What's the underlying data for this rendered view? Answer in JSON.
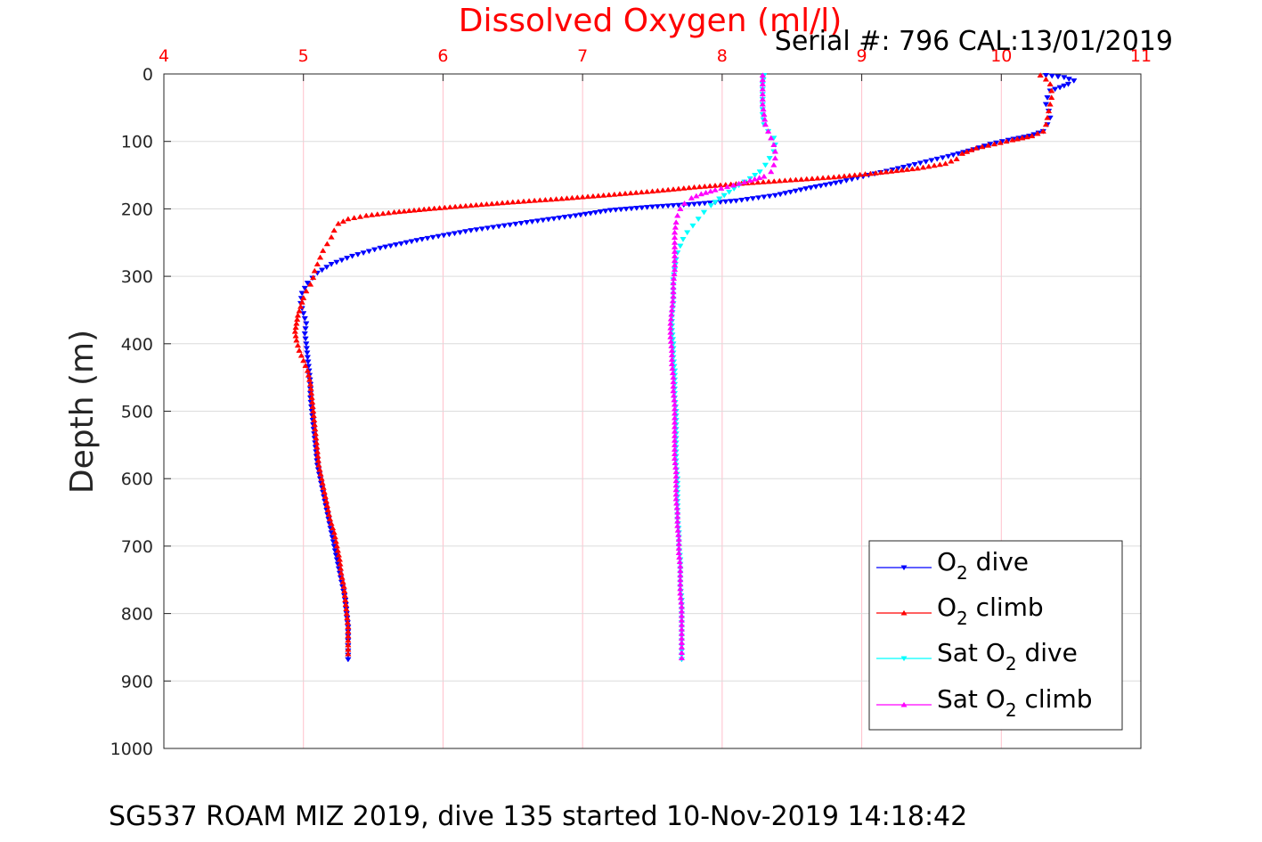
{
  "chart_data": {
    "type": "scatter",
    "title": "Dissolved Oxygen (ml/l)",
    "subtitle": "Serial #: 796  CAL:13/01/2019",
    "footer": "SG537 ROAM MIZ 2019, dive 135 started 10-Nov-2019 14:18:42",
    "xlabel": "",
    "ylabel": "Depth (m)",
    "xlim": [
      4,
      11
    ],
    "ylim": [
      0,
      1000
    ],
    "y_reversed": true,
    "x_axis_position": "top",
    "x_ticks": [
      "4",
      "5",
      "6",
      "7",
      "8",
      "9",
      "10",
      "11"
    ],
    "y_ticks": [
      "0",
      "100",
      "200",
      "300",
      "400",
      "500",
      "600",
      "700",
      "800",
      "900",
      "1000"
    ],
    "grid": true,
    "grid_color": "#ffc0cb",
    "title_color": "#ff0000",
    "legend_position": "bottom-right",
    "series": [
      {
        "name": "O2 dive",
        "label_main": "O",
        "label_sub": "2",
        "label_rest": " dive",
        "color": "#0000ff",
        "marker": "triangle-down",
        "points": [
          [
            10.32,
            2
          ],
          [
            10.45,
            5
          ],
          [
            10.52,
            10
          ],
          [
            10.48,
            15
          ],
          [
            10.42,
            20
          ],
          [
            10.35,
            25
          ],
          [
            10.33,
            35
          ],
          [
            10.32,
            45
          ],
          [
            10.34,
            55
          ],
          [
            10.35,
            65
          ],
          [
            10.33,
            75
          ],
          [
            10.3,
            85
          ],
          [
            10.2,
            92
          ],
          [
            10.05,
            98
          ],
          [
            9.92,
            104
          ],
          [
            9.8,
            112
          ],
          [
            9.62,
            122
          ],
          [
            9.42,
            132
          ],
          [
            9.22,
            142
          ],
          [
            9.05,
            150
          ],
          [
            8.85,
            160
          ],
          [
            8.6,
            170
          ],
          [
            8.38,
            180
          ],
          [
            8.1,
            188
          ],
          [
            7.8,
            193
          ],
          [
            7.5,
            197
          ],
          [
            7.2,
            202
          ],
          [
            6.95,
            210
          ],
          [
            6.6,
            220
          ],
          [
            6.2,
            232
          ],
          [
            5.85,
            245
          ],
          [
            5.55,
            258
          ],
          [
            5.35,
            270
          ],
          [
            5.2,
            282
          ],
          [
            5.1,
            295
          ],
          [
            5.03,
            310
          ],
          [
            4.99,
            325
          ],
          [
            4.98,
            340
          ],
          [
            5.0,
            355
          ],
          [
            5.02,
            370
          ],
          [
            5.01,
            385
          ],
          [
            5.02,
            400
          ],
          [
            5.03,
            420
          ],
          [
            5.04,
            440
          ],
          [
            5.05,
            460
          ],
          [
            5.05,
            480
          ],
          [
            5.06,
            500
          ],
          [
            5.07,
            520
          ],
          [
            5.08,
            540
          ],
          [
            5.09,
            560
          ],
          [
            5.1,
            580
          ],
          [
            5.12,
            600
          ],
          [
            5.14,
            620
          ],
          [
            5.16,
            640
          ],
          [
            5.18,
            660
          ],
          [
            5.2,
            680
          ],
          [
            5.22,
            700
          ],
          [
            5.24,
            720
          ],
          [
            5.26,
            740
          ],
          [
            5.28,
            760
          ],
          [
            5.3,
            780
          ],
          [
            5.31,
            800
          ],
          [
            5.32,
            820
          ],
          [
            5.32,
            840
          ],
          [
            5.32,
            855
          ],
          [
            5.32,
            868
          ]
        ]
      },
      {
        "name": "O2 climb",
        "label_main": "O",
        "label_sub": "2",
        "label_rest": " climb",
        "color": "#ff0000",
        "marker": "triangle-up",
        "points": [
          [
            10.28,
            2
          ],
          [
            10.32,
            8
          ],
          [
            10.35,
            15
          ],
          [
            10.36,
            25
          ],
          [
            10.36,
            35
          ],
          [
            10.35,
            45
          ],
          [
            10.34,
            55
          ],
          [
            10.33,
            65
          ],
          [
            10.32,
            75
          ],
          [
            10.3,
            85
          ],
          [
            10.22,
            92
          ],
          [
            10.08,
            98
          ],
          [
            9.95,
            104
          ],
          [
            9.82,
            110
          ],
          [
            9.72,
            118
          ],
          [
            9.68,
            126
          ],
          [
            9.6,
            133
          ],
          [
            9.4,
            140
          ],
          [
            9.1,
            147
          ],
          [
            8.8,
            153
          ],
          [
            8.45,
            158
          ],
          [
            8.1,
            163
          ],
          [
            7.8,
            168
          ],
          [
            7.5,
            174
          ],
          [
            7.15,
            180
          ],
          [
            6.85,
            185
          ],
          [
            6.5,
            190
          ],
          [
            6.2,
            195
          ],
          [
            5.9,
            200
          ],
          [
            5.65,
            205
          ],
          [
            5.45,
            210
          ],
          [
            5.32,
            215
          ],
          [
            5.25,
            222
          ],
          [
            5.22,
            232
          ],
          [
            5.2,
            242
          ],
          [
            5.17,
            252
          ],
          [
            5.14,
            262
          ],
          [
            5.12,
            272
          ],
          [
            5.1,
            282
          ],
          [
            5.08,
            292
          ],
          [
            5.07,
            302
          ],
          [
            5.05,
            312
          ],
          [
            5.02,
            322
          ],
          [
            5.0,
            332
          ],
          [
            4.98,
            345
          ],
          [
            4.96,
            358
          ],
          [
            4.95,
            370
          ],
          [
            4.94,
            382
          ],
          [
            4.95,
            395
          ],
          [
            4.97,
            410
          ],
          [
            5.0,
            425
          ],
          [
            5.03,
            440
          ],
          [
            5.05,
            460
          ],
          [
            5.06,
            480
          ],
          [
            5.07,
            500
          ],
          [
            5.08,
            520
          ],
          [
            5.09,
            540
          ],
          [
            5.1,
            560
          ],
          [
            5.11,
            580
          ],
          [
            5.13,
            600
          ],
          [
            5.15,
            620
          ],
          [
            5.17,
            640
          ],
          [
            5.19,
            660
          ],
          [
            5.22,
            680
          ],
          [
            5.24,
            700
          ],
          [
            5.26,
            720
          ],
          [
            5.27,
            740
          ],
          [
            5.29,
            760
          ],
          [
            5.3,
            780
          ],
          [
            5.31,
            800
          ],
          [
            5.32,
            820
          ],
          [
            5.32,
            840
          ],
          [
            5.32,
            860
          ]
        ]
      },
      {
        "name": "Sat O2 dive",
        "label_main": "Sat O",
        "label_sub": "2",
        "label_rest": " dive",
        "color": "#00ffff",
        "marker": "triangle-down",
        "points": [
          [
            8.3,
            2
          ],
          [
            8.29,
            15
          ],
          [
            8.29,
            30
          ],
          [
            8.29,
            45
          ],
          [
            8.29,
            60
          ],
          [
            8.3,
            75
          ],
          [
            8.33,
            85
          ],
          [
            8.37,
            95
          ],
          [
            8.38,
            105
          ],
          [
            8.37,
            115
          ],
          [
            8.34,
            125
          ],
          [
            8.31,
            135
          ],
          [
            8.27,
            145
          ],
          [
            8.2,
            155
          ],
          [
            8.12,
            165
          ],
          [
            8.05,
            175
          ],
          [
            7.98,
            185
          ],
          [
            7.92,
            195
          ],
          [
            7.87,
            205
          ],
          [
            7.83,
            215
          ],
          [
            7.79,
            225
          ],
          [
            7.75,
            235
          ],
          [
            7.72,
            245
          ],
          [
            7.7,
            255
          ],
          [
            7.68,
            265
          ],
          [
            7.67,
            275
          ],
          [
            7.66,
            290
          ],
          [
            7.65,
            305
          ],
          [
            7.65,
            320
          ],
          [
            7.65,
            340
          ],
          [
            7.64,
            360
          ],
          [
            7.64,
            380
          ],
          [
            7.65,
            400
          ],
          [
            7.65,
            420
          ],
          [
            7.66,
            440
          ],
          [
            7.66,
            460
          ],
          [
            7.66,
            480
          ],
          [
            7.67,
            500
          ],
          [
            7.67,
            520
          ],
          [
            7.67,
            540
          ],
          [
            7.67,
            560
          ],
          [
            7.67,
            580
          ],
          [
            7.68,
            600
          ],
          [
            7.68,
            620
          ],
          [
            7.68,
            640
          ],
          [
            7.68,
            660
          ],
          [
            7.69,
            680
          ],
          [
            7.69,
            700
          ],
          [
            7.7,
            720
          ],
          [
            7.7,
            740
          ],
          [
            7.7,
            760
          ],
          [
            7.71,
            780
          ],
          [
            7.71,
            800
          ],
          [
            7.71,
            820
          ],
          [
            7.71,
            840
          ],
          [
            7.71,
            855
          ],
          [
            7.71,
            868
          ]
        ]
      },
      {
        "name": "Sat O2 climb",
        "label_main": "Sat O",
        "label_sub": "2",
        "label_rest": " climb",
        "color": "#ff00ff",
        "marker": "triangle-up",
        "points": [
          [
            8.29,
            2
          ],
          [
            8.29,
            15
          ],
          [
            8.29,
            30
          ],
          [
            8.29,
            45
          ],
          [
            8.3,
            60
          ],
          [
            8.31,
            75
          ],
          [
            8.33,
            85
          ],
          [
            8.35,
            95
          ],
          [
            8.37,
            105
          ],
          [
            8.38,
            115
          ],
          [
            8.38,
            125
          ],
          [
            8.37,
            135
          ],
          [
            8.35,
            145
          ],
          [
            8.3,
            152
          ],
          [
            8.2,
            158
          ],
          [
            8.08,
            165
          ],
          [
            7.95,
            172
          ],
          [
            7.85,
            178
          ],
          [
            7.78,
            184
          ],
          [
            7.73,
            192
          ],
          [
            7.7,
            200
          ],
          [
            7.68,
            210
          ],
          [
            7.67,
            220
          ],
          [
            7.66,
            235
          ],
          [
            7.66,
            250
          ],
          [
            7.66,
            270
          ],
          [
            7.66,
            290
          ],
          [
            7.65,
            310
          ],
          [
            7.65,
            330
          ],
          [
            7.64,
            350
          ],
          [
            7.63,
            370
          ],
          [
            7.63,
            390
          ],
          [
            7.64,
            410
          ],
          [
            7.64,
            430
          ],
          [
            7.65,
            450
          ],
          [
            7.65,
            470
          ],
          [
            7.66,
            490
          ],
          [
            7.66,
            510
          ],
          [
            7.66,
            530
          ],
          [
            7.66,
            550
          ],
          [
            7.66,
            570
          ],
          [
            7.67,
            590
          ],
          [
            7.67,
            610
          ],
          [
            7.67,
            630
          ],
          [
            7.68,
            650
          ],
          [
            7.68,
            670
          ],
          [
            7.69,
            690
          ],
          [
            7.69,
            710
          ],
          [
            7.7,
            730
          ],
          [
            7.7,
            750
          ],
          [
            7.7,
            770
          ],
          [
            7.71,
            790
          ],
          [
            7.71,
            810
          ],
          [
            7.71,
            830
          ],
          [
            7.71,
            850
          ],
          [
            7.71,
            866
          ]
        ]
      }
    ]
  }
}
